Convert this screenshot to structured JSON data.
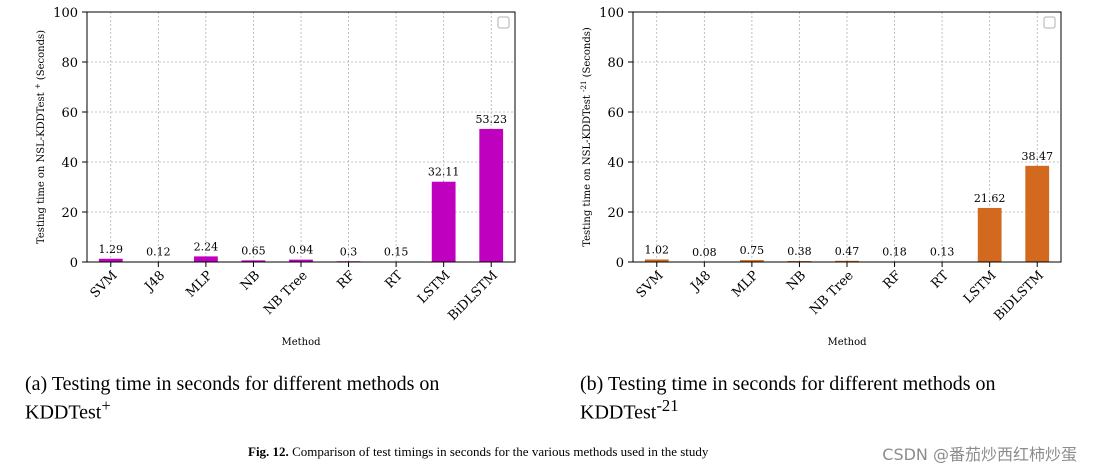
{
  "chart_data": [
    {
      "type": "bar",
      "title": "",
      "xlabel": "Method",
      "ylabel_prefix": "Testing time on NSL-KDDTest",
      "ylabel_sup": "+",
      "ylabel_suffix": "(Seconds)",
      "ylim": [
        0,
        100
      ],
      "yticks": [
        "0",
        "20",
        "40",
        "60",
        "80",
        "100"
      ],
      "grid": true,
      "legend": "top-right (empty)",
      "categories": [
        "SVM",
        "J48",
        "MLP",
        "NB",
        "NB Tree",
        "RF",
        "RT",
        "LSTM",
        "BiDLSTM"
      ],
      "values": [
        1.29,
        0.12,
        2.24,
        0.65,
        0.94,
        0.3,
        0.15,
        32.11,
        53.23
      ],
      "labels": [
        "1.29",
        "0.12",
        "2.24",
        "0.65",
        "0.94",
        "0.3",
        "0.15",
        "32.11",
        "53.23"
      ],
      "color": "#bf00bf"
    },
    {
      "type": "bar",
      "title": "",
      "xlabel": "Method",
      "ylabel_prefix": "Testing time on NSL-KDDTest",
      "ylabel_sup": "-21",
      "ylabel_suffix": "(Seconds)",
      "ylim": [
        0,
        100
      ],
      "yticks": [
        "0",
        "20",
        "40",
        "60",
        "80",
        "100"
      ],
      "grid": true,
      "legend": "top-right (empty)",
      "categories": [
        "SVM",
        "J48",
        "MLP",
        "NB",
        "NB Tree",
        "RF",
        "RT",
        "LSTM",
        "BiDLSTM"
      ],
      "values": [
        1.02,
        0.08,
        0.75,
        0.38,
        0.47,
        0.18,
        0.13,
        21.62,
        38.47
      ],
      "labels": [
        "1.02",
        "0.08",
        "0.75",
        "0.38",
        "0.47",
        "0.18",
        "0.13",
        "21.62",
        "38.47"
      ],
      "color": "#d2691e"
    }
  ],
  "subcaptions": {
    "a_line1": "(a) Testing time in seconds for different methods on",
    "a_line2": "KDDTest",
    "a_sup": "+",
    "b_line1": "(b) Testing time in seconds for different methods on",
    "b_line2": "KDDTest",
    "b_sup": "-21"
  },
  "figure_caption": {
    "label": "Fig. 12.",
    "text": "Comparison of test timings in seconds for the various methods used in the study"
  },
  "watermark": "CSDN @番茄炒西红柿炒蛋"
}
